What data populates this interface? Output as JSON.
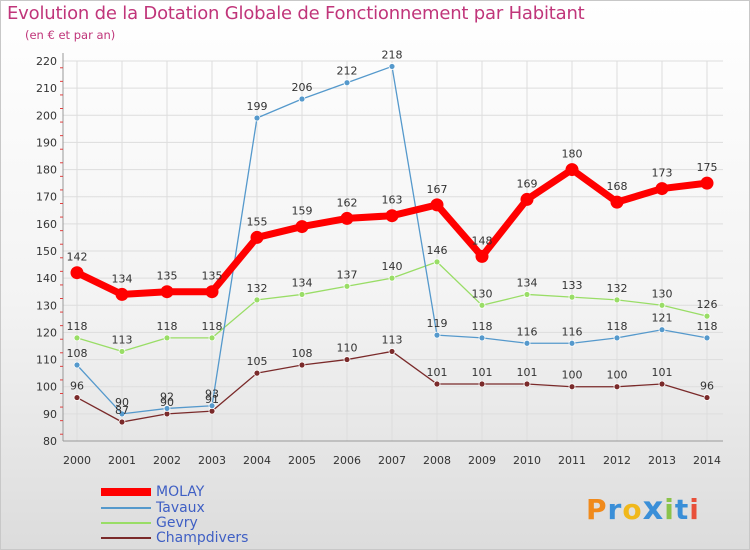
{
  "header": {
    "title": "Evolution de la Dotation Globale de Fonctionnement par Habitant",
    "subtitle": "(en € et par an)"
  },
  "logo": {
    "text": "Proxiti",
    "letters": [
      "P",
      "r",
      "o",
      "x",
      "i",
      "t",
      "i"
    ]
  },
  "chart_data": {
    "type": "line",
    "title": "Evolution de la Dotation Globale de Fonctionnement par Habitant",
    "subtitle": "(en € et par an)",
    "xlabel": "",
    "ylabel": "",
    "x": [
      2000,
      2001,
      2002,
      2003,
      2004,
      2005,
      2006,
      2007,
      2008,
      2009,
      2010,
      2011,
      2012,
      2013,
      2014
    ],
    "ylim": [
      80,
      220
    ],
    "yticks": [
      80,
      90,
      100,
      110,
      120,
      130,
      140,
      150,
      160,
      170,
      180,
      190,
      200,
      210,
      220
    ],
    "grid": true,
    "legend_position": "bottom-left",
    "series": [
      {
        "name": "Champdivers",
        "color": "#7a2a2a",
        "values": [
          96,
          87,
          90,
          91,
          105,
          108,
          110,
          113,
          101,
          101,
          101,
          100,
          100,
          101,
          96
        ]
      },
      {
        "name": "Gevry",
        "color": "#99dd66",
        "values": [
          118,
          113,
          118,
          118,
          132,
          134,
          137,
          140,
          146,
          130,
          134,
          133,
          132,
          130,
          126
        ]
      },
      {
        "name": "Tavaux",
        "color": "#5599cc",
        "values": [
          108,
          90,
          92,
          93,
          199,
          206,
          212,
          218,
          119,
          118,
          116,
          116,
          118,
          121,
          118
        ]
      },
      {
        "name": "MOLAY",
        "color": "#ff0000",
        "values": [
          142,
          134,
          135,
          135,
          155,
          159,
          162,
          163,
          167,
          148,
          169,
          180,
          168,
          173,
          175
        ]
      }
    ],
    "legend_order": [
      "MOLAY",
      "Tavaux",
      "Gevry",
      "Champdivers"
    ]
  }
}
